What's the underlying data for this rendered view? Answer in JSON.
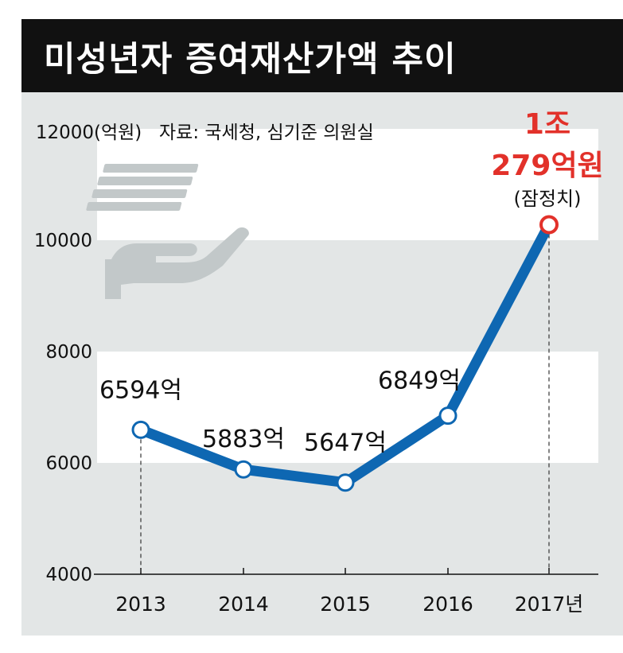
{
  "header": {
    "title": "미성년자 증여재산가액 추이"
  },
  "chart_data": {
    "type": "line",
    "title": "미성년자 증여재산가액 추이",
    "unit_label": "(억원)",
    "source": "자료: 국세청, 심기준 의원실",
    "categories": [
      "2013",
      "2014",
      "2015",
      "2016",
      "2017년"
    ],
    "values": [
      6594,
      5883,
      5647,
      6849,
      10279
    ],
    "data_labels": [
      "6594억",
      "5883억",
      "5647억",
      "6849억",
      ""
    ],
    "last_point_label": {
      "line1": "1조",
      "line2": "279억원",
      "note": "(잠정치)"
    },
    "ylim": [
      4000,
      12000
    ],
    "yticks": [
      "4000",
      "6000",
      "8000",
      "10000",
      "12000"
    ],
    "grid": "alternating white bands",
    "colors": {
      "line": "#0e67b2",
      "highlight": "#e2312a",
      "band": "#ffffff",
      "panel": "#e3e6e6",
      "header": "#111111",
      "icon": "#c2c8c9"
    },
    "icons": [
      "hand-holding-money-icon"
    ]
  }
}
